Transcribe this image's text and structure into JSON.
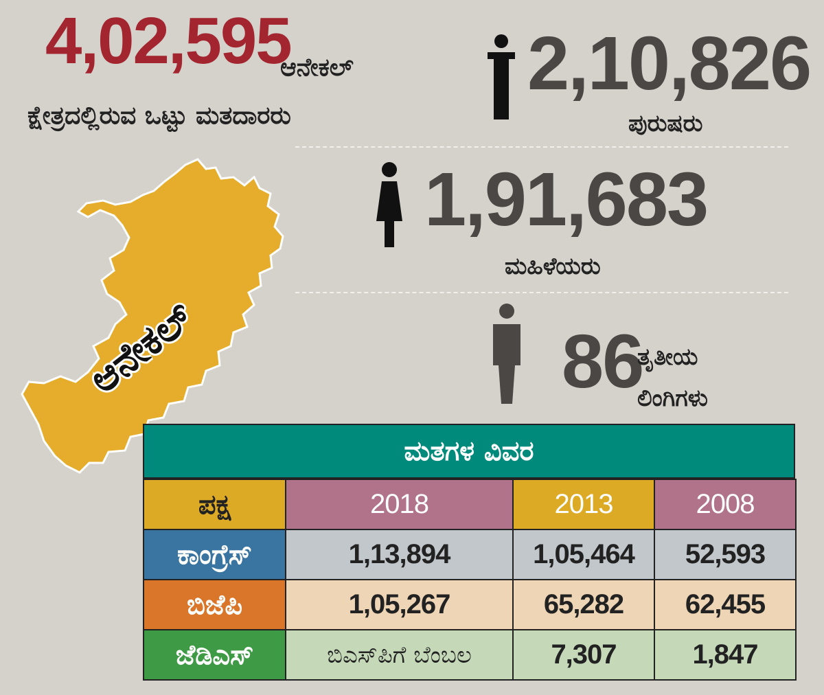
{
  "total": {
    "number": "4,02,595",
    "label_line1": "ಆನೇಕಲ್",
    "label_line2": "ಕ್ಷೇತ್ರದಲ್ಲಿರುವ ಒಟ್ಟು ಮತದಾರರು"
  },
  "map": {
    "label": "ಆನೇಕಲ್",
    "fill_color": "#e5ad2b"
  },
  "voters": {
    "male": {
      "number": "2,10,826",
      "label": "ಪುರುಷರು",
      "icon": "male-person-icon"
    },
    "female": {
      "number": "1,91,683",
      "label": "ಮಹಿಳೆಯರು",
      "icon": "female-person-icon"
    },
    "third_gender": {
      "number": "86",
      "label_line1": "ತೃತೀಯ",
      "label_line2": "ಲಿಂಗಿಗಳು",
      "icon": "third-gender-person-icon"
    }
  },
  "table": {
    "title": "ಮತಗಳ ವಿವರ",
    "title_bg": "#008a7c",
    "headers": [
      "ಪಕ್ಷ",
      "2018",
      "2013",
      "2008"
    ],
    "header_colors": [
      "#dcaa25",
      "#b0738a",
      "#dcaa25",
      "#b0738a"
    ],
    "rows": [
      {
        "party": "ಕಾಂಗ್ರೆಸ್",
        "party_color": "#3a74a0",
        "cell_color": "#c2c7cb",
        "values": [
          "1,13,894",
          "1,05,464",
          "52,593"
        ]
      },
      {
        "party": "ಬಿಜೆಪಿ",
        "party_color": "#d9762a",
        "cell_color": "#edd5b6",
        "values": [
          "1,05,267",
          "65,282",
          "62,455"
        ]
      },
      {
        "party": "ಜೆಡಿಎಸ್",
        "party_color": "#3f9a45",
        "cell_color": "#c5d9b9",
        "values": [
          "ಬಿಎಸ್‌ಪಿಗೆ ಬೆಂಬಲ",
          "7,307",
          "1,847"
        ]
      }
    ]
  }
}
